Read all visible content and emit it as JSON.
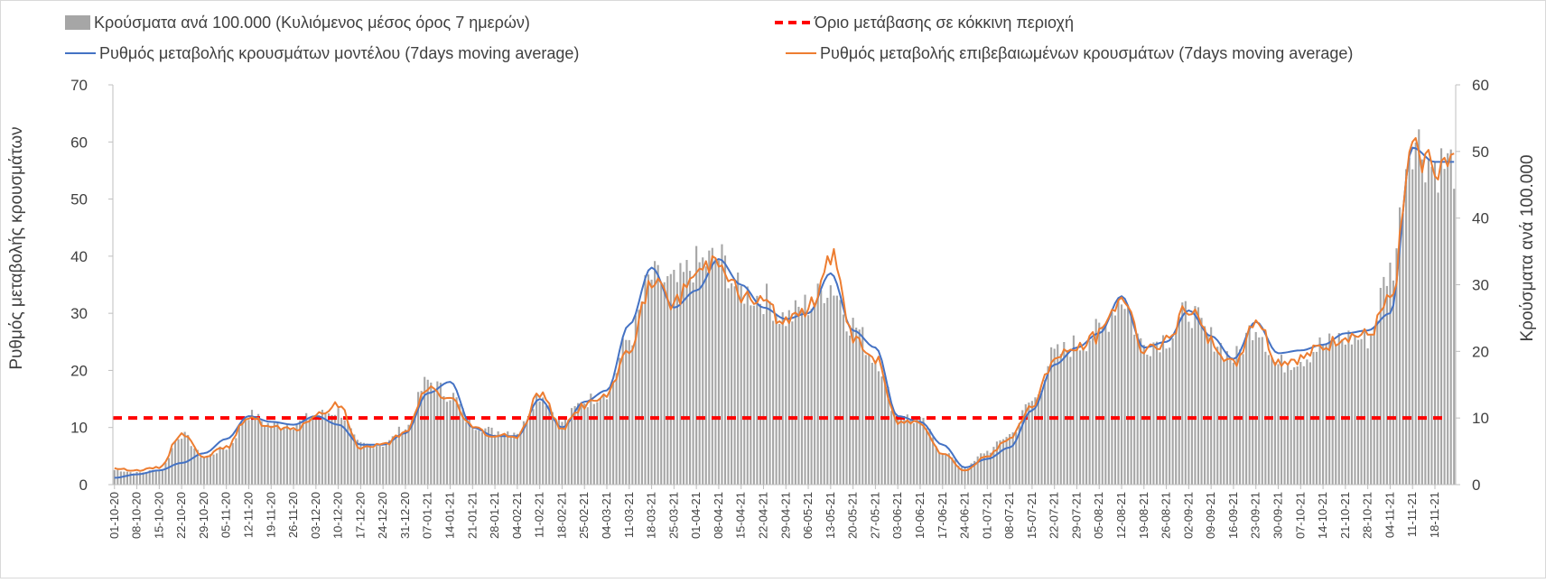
{
  "chart_data": {
    "type": "bar+line",
    "title": "",
    "x_start": "01-10-20",
    "x_end": "23-11-21",
    "x_tick_labels": [
      "01-10-20",
      "08-10-20",
      "15-10-20",
      "22-10-20",
      "29-10-20",
      "05-11-20",
      "12-11-20",
      "19-11-20",
      "26-11-20",
      "03-12-20",
      "10-12-20",
      "17-12-20",
      "24-12-20",
      "31-12-20",
      "07-01-21",
      "14-01-21",
      "21-01-21",
      "28-01-21",
      "04-02-21",
      "11-02-21",
      "18-02-21",
      "25-02-21",
      "04-03-21",
      "11-03-21",
      "18-03-21",
      "25-03-21",
      "01-04-21",
      "08-04-21",
      "15-04-21",
      "22-04-21",
      "29-04-21",
      "06-05-21",
      "13-05-21",
      "20-05-21",
      "27-05-21",
      "03-06-21",
      "10-06-21",
      "17-06-21",
      "24-06-21",
      "01-07-21",
      "08-07-21",
      "15-07-21",
      "22-07-21",
      "29-07-21",
      "05-08-21",
      "12-08-21",
      "19-08-21",
      "26-08-21",
      "02-09-21",
      "09-09-21",
      "16-09-21",
      "23-09-21",
      "30-09-21",
      "07-10-21",
      "14-10-21",
      "21-10-21",
      "28-10-21",
      "04-11-21",
      "11-11-21",
      "18-11-21"
    ],
    "y_left": {
      "label": "Ρυθμός μεταβολής κρουσμάτων",
      "min": 0,
      "max": 70,
      "ticks": [
        "0",
        "10",
        "20",
        "30",
        "40",
        "50",
        "60",
        "70"
      ]
    },
    "y_right": {
      "label": "Κρούσματα ανά 100.000",
      "min": 0,
      "max": 60,
      "ticks": [
        "0",
        "10",
        "20",
        "30",
        "40",
        "50",
        "60"
      ]
    },
    "threshold": {
      "name": "Όριο μετάβασης σε κόκκινη περιοχή",
      "value": 10,
      "axis": "right",
      "color": "#ff0000"
    },
    "series": [
      {
        "name": "Κρούσματα ανά 100.000 (Κυλιόμενος μέσος όρος 7 ημερών)",
        "type": "bar",
        "axis": "right",
        "color": "#a6a6a6",
        "weekly_values": [
          2.2,
          1.8,
          2.2,
          7.5,
          4.2,
          5.5,
          10.5,
          9.0,
          9.0,
          10.5,
          11.0,
          6.0,
          6.0,
          8.5,
          15.5,
          13.5,
          9.0,
          8.0,
          8.0,
          13.5,
          9.5,
          12.5,
          14.0,
          22.0,
          31.0,
          30.0,
          33.0,
          34.0,
          29.0,
          28.0,
          25.0,
          27.0,
          30.0,
          24.0,
          19.0,
          10.5,
          9.5,
          5.0,
          2.5,
          5.0,
          7.5,
          12.5,
          19.5,
          21.0,
          23.0,
          28.0,
          21.0,
          22.0,
          26.0,
          22.0,
          19.0,
          24.0,
          18.0,
          19.0,
          21.0,
          22.0,
          22.0,
          32.0,
          52.0,
          48.0
        ]
      },
      {
        "name": "Ρυθμός μεταβολής κρουσμάτων μοντέλου (7days moving average)",
        "type": "line",
        "axis": "left",
        "color": "#4472c4",
        "weekly_values": [
          1.2,
          1.8,
          2.5,
          3.8,
          5.5,
          8.0,
          12.0,
          11.0,
          10.5,
          12.0,
          10.5,
          7.0,
          7.0,
          9.0,
          16.0,
          18.0,
          10.0,
          8.5,
          8.5,
          15.0,
          10.0,
          14.5,
          16.5,
          28.0,
          38.0,
          31.0,
          34.0,
          39.5,
          35.0,
          31.0,
          29.0,
          30.0,
          37.0,
          27.0,
          24.0,
          12.0,
          11.0,
          7.0,
          3.0,
          4.5,
          6.5,
          13.0,
          21.0,
          24.0,
          26.5,
          33.0,
          24.0,
          25.0,
          30.5,
          26.0,
          22.0,
          28.5,
          23.0,
          23.5,
          24.5,
          26.5,
          27.0,
          30.0,
          59.0,
          56.5
        ]
      },
      {
        "name": "Ρυθμός μεταβολής επιβεβαιωμένων κρουσμάτων (7days moving average)",
        "type": "line",
        "axis": "left",
        "color": "#ed7d31",
        "weekly_values": [
          2.8,
          2.5,
          3.0,
          9.0,
          5.0,
          6.5,
          12.0,
          10.0,
          9.5,
          12.0,
          14.0,
          6.5,
          7.0,
          9.0,
          17.0,
          15.0,
          10.0,
          8.5,
          8.5,
          16.0,
          10.0,
          14.0,
          15.5,
          24.0,
          35.0,
          32.0,
          37.0,
          40.0,
          33.0,
          32.0,
          28.0,
          31.0,
          40.0,
          26.0,
          22.0,
          11.0,
          11.0,
          5.5,
          2.5,
          5.0,
          8.0,
          14.0,
          22.0,
          24.0,
          26.0,
          33.0,
          24.0,
          25.0,
          31.0,
          25.0,
          21.0,
          29.0,
          21.5,
          22.0,
          24.0,
          26.0,
          26.0,
          32.0,
          58.0,
          56.0
        ]
      }
    ],
    "legend": {
      "position": "top",
      "columns": 2
    }
  }
}
